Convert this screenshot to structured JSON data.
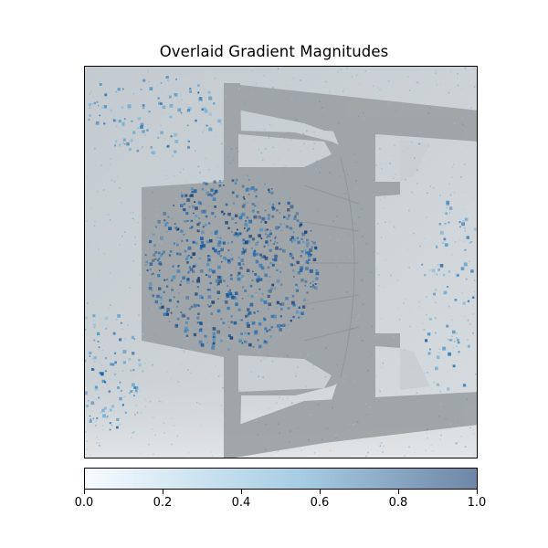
{
  "chart_data": {
    "type": "heatmap",
    "title": "Overlaid Gradient Magnitudes",
    "xlabel": "",
    "ylabel": "",
    "x_ticks_visible": false,
    "y_ticks_visible": false,
    "background": "grayscale photograph of a plastic chair, top-down view",
    "overlay_colormap": "Blues",
    "overlay_alpha": 0.5,
    "colorbar": {
      "orientation": "horizontal",
      "position": "bottom",
      "range": [
        0.0,
        1.0
      ],
      "ticks": [
        0.0,
        0.2,
        0.4,
        0.6,
        0.8,
        1.0
      ],
      "tick_labels": [
        "0.0",
        "0.2",
        "0.4",
        "0.6",
        "0.8",
        "1.0"
      ],
      "color_low": "#f7fbff",
      "color_mid": "#a6cde3",
      "color_high": "#6f86a8"
    },
    "hotspots": [
      {
        "name": "seat-center",
        "intensity": 0.9
      },
      {
        "name": "top-left-corner",
        "intensity": 0.45
      },
      {
        "name": "left-bottom-edge",
        "intensity": 0.5
      },
      {
        "name": "right-middle-edge",
        "intensity": 0.4
      }
    ]
  }
}
